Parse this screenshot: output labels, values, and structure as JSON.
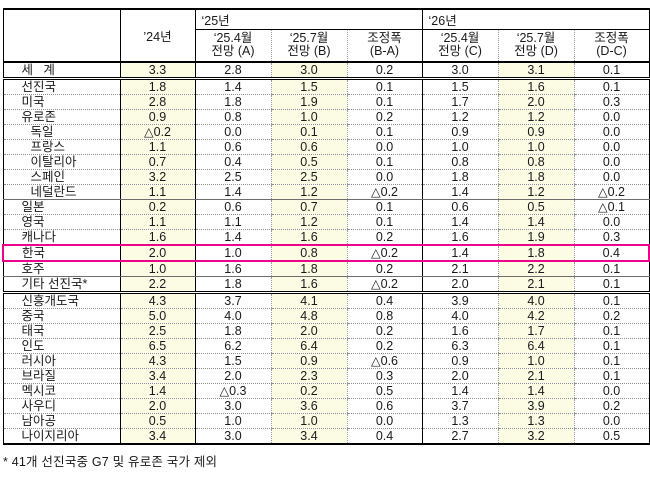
{
  "header": {
    "year24": "’24년",
    "group25": "‘25년",
    "group26": "‘26년",
    "subs": [
      "‘25.4월\n전망 (A)",
      "‘25.7월\n전망 (B)",
      "조정폭\n(B-A)",
      "‘25.4월\n전망 (C)",
      "‘25.7월\n전망 (D)",
      "조정폭\n(D-C)"
    ]
  },
  "rows": [
    {
      "label": "세   계",
      "indent": 0,
      "highlight": false,
      "sep": "double",
      "values": [
        "3.3",
        "2.8",
        "3.0",
        "0.2",
        "3.0",
        "3.1",
        "0.1"
      ]
    },
    {
      "label": "선진국",
      "indent": 0,
      "highlight": false,
      "sep": "dotted",
      "values": [
        "1.8",
        "1.4",
        "1.5",
        "0.1",
        "1.5",
        "1.6",
        "0.1"
      ]
    },
    {
      "label": "미국",
      "indent": 0,
      "highlight": false,
      "sep": "dotted",
      "values": [
        "2.8",
        "1.8",
        "1.9",
        "0.1",
        "1.7",
        "2.0",
        "0.3"
      ]
    },
    {
      "label": "유로존",
      "indent": 0,
      "highlight": false,
      "sep": "dotted",
      "values": [
        "0.9",
        "0.8",
        "1.0",
        "0.2",
        "1.2",
        "1.2",
        "0.0"
      ]
    },
    {
      "label": "독일",
      "indent": 1,
      "highlight": false,
      "sep": "dotted",
      "values": [
        "△0.2",
        "0.0",
        "0.1",
        "0.1",
        "0.9",
        "0.9",
        "0.0"
      ]
    },
    {
      "label": "프랑스",
      "indent": 1,
      "highlight": false,
      "sep": "dotted",
      "values": [
        "1.1",
        "0.6",
        "0.6",
        "0.0",
        "1.0",
        "1.0",
        "0.0"
      ]
    },
    {
      "label": "이탈리아",
      "indent": 1,
      "highlight": false,
      "sep": "dotted",
      "values": [
        "0.7",
        "0.4",
        "0.5",
        "0.1",
        "0.8",
        "0.8",
        "0.0"
      ]
    },
    {
      "label": "스페인",
      "indent": 1,
      "highlight": false,
      "sep": "dotted",
      "values": [
        "3.2",
        "2.5",
        "2.5",
        "0.0",
        "1.8",
        "1.8",
        "0.0"
      ]
    },
    {
      "label": "네덜란드",
      "indent": 1,
      "highlight": false,
      "sep": "solid",
      "values": [
        "1.1",
        "1.4",
        "1.2",
        "△0.2",
        "1.4",
        "1.2",
        "△0.2"
      ]
    },
    {
      "label": "일본",
      "indent": 0,
      "highlight": false,
      "sep": "dotted",
      "values": [
        "0.2",
        "0.6",
        "0.7",
        "0.1",
        "0.6",
        "0.5",
        "△0.1"
      ]
    },
    {
      "label": "영국",
      "indent": 0,
      "highlight": false,
      "sep": "dotted",
      "values": [
        "1.1",
        "1.1",
        "1.2",
        "0.1",
        "1.4",
        "1.4",
        "0.0"
      ]
    },
    {
      "label": "캐나다",
      "indent": 0,
      "highlight": false,
      "sep": "dotted",
      "values": [
        "1.6",
        "1.4",
        "1.6",
        "0.2",
        "1.6",
        "1.9",
        "0.3"
      ]
    },
    {
      "label": "한국",
      "indent": 0,
      "highlight": true,
      "sep": "dotted",
      "values": [
        "2.0",
        "1.0",
        "0.8",
        "△0.2",
        "1.4",
        "1.8",
        "0.4"
      ]
    },
    {
      "label": "호주",
      "indent": 0,
      "highlight": false,
      "sep": "solid",
      "values": [
        "1.0",
        "1.6",
        "1.8",
        "0.2",
        "2.1",
        "2.2",
        "0.1"
      ]
    },
    {
      "label": "기타 선진국*",
      "indent": 0,
      "highlight": false,
      "sep": "double",
      "values": [
        "2.2",
        "1.8",
        "1.6",
        "△0.2",
        "2.0",
        "2.1",
        "0.1"
      ]
    },
    {
      "label": "신흥개도국",
      "indent": 0,
      "highlight": false,
      "sep": "dotted",
      "values": [
        "4.3",
        "3.7",
        "4.1",
        "0.4",
        "3.9",
        "4.0",
        "0.1"
      ]
    },
    {
      "label": "중국",
      "indent": 0,
      "highlight": false,
      "sep": "dotted",
      "values": [
        "5.0",
        "4.0",
        "4.8",
        "0.8",
        "4.0",
        "4.2",
        "0.2"
      ]
    },
    {
      "label": "태국",
      "indent": 0,
      "highlight": false,
      "sep": "dotted",
      "values": [
        "2.5",
        "1.8",
        "2.0",
        "0.2",
        "1.6",
        "1.7",
        "0.1"
      ]
    },
    {
      "label": "인도",
      "indent": 0,
      "highlight": false,
      "sep": "dotted",
      "values": [
        "6.5",
        "6.2",
        "6.4",
        "0.2",
        "6.3",
        "6.4",
        "0.1"
      ]
    },
    {
      "label": "러시아",
      "indent": 0,
      "highlight": false,
      "sep": "dotted",
      "values": [
        "4.3",
        "1.5",
        "0.9",
        "△0.6",
        "0.9",
        "1.0",
        "0.1"
      ]
    },
    {
      "label": "브라질",
      "indent": 0,
      "highlight": false,
      "sep": "dotted",
      "values": [
        "3.4",
        "2.0",
        "2.3",
        "0.3",
        "2.0",
        "2.1",
        "0.1"
      ]
    },
    {
      "label": "멕시코",
      "indent": 0,
      "highlight": false,
      "sep": "dotted",
      "values": [
        "1.4",
        "△0.3",
        "0.2",
        "0.5",
        "1.4",
        "1.4",
        "0.0"
      ]
    },
    {
      "label": "사우디",
      "indent": 0,
      "highlight": false,
      "sep": "dotted",
      "values": [
        "2.0",
        "3.0",
        "3.6",
        "0.6",
        "3.7",
        "3.9",
        "0.2"
      ]
    },
    {
      "label": "남아공",
      "indent": 0,
      "highlight": false,
      "sep": "dotted",
      "values": [
        "0.5",
        "1.0",
        "1.0",
        "0.0",
        "1.3",
        "1.3",
        "0.0"
      ]
    },
    {
      "label": "나이지리아",
      "indent": 0,
      "highlight": false,
      "sep": "none",
      "values": [
        "3.4",
        "3.0",
        "3.4",
        "0.4",
        "2.7",
        "3.2",
        "0.5"
      ]
    }
  ],
  "shaded_value_columns": [
    0,
    2,
    5
  ],
  "footnote": "* 41개 선진국중 G7 및 유로존 국가 제외",
  "colors": {
    "highlight_border": "#EC008C",
    "column_shade": "#FCFBE3",
    "table_border": "#000000"
  }
}
